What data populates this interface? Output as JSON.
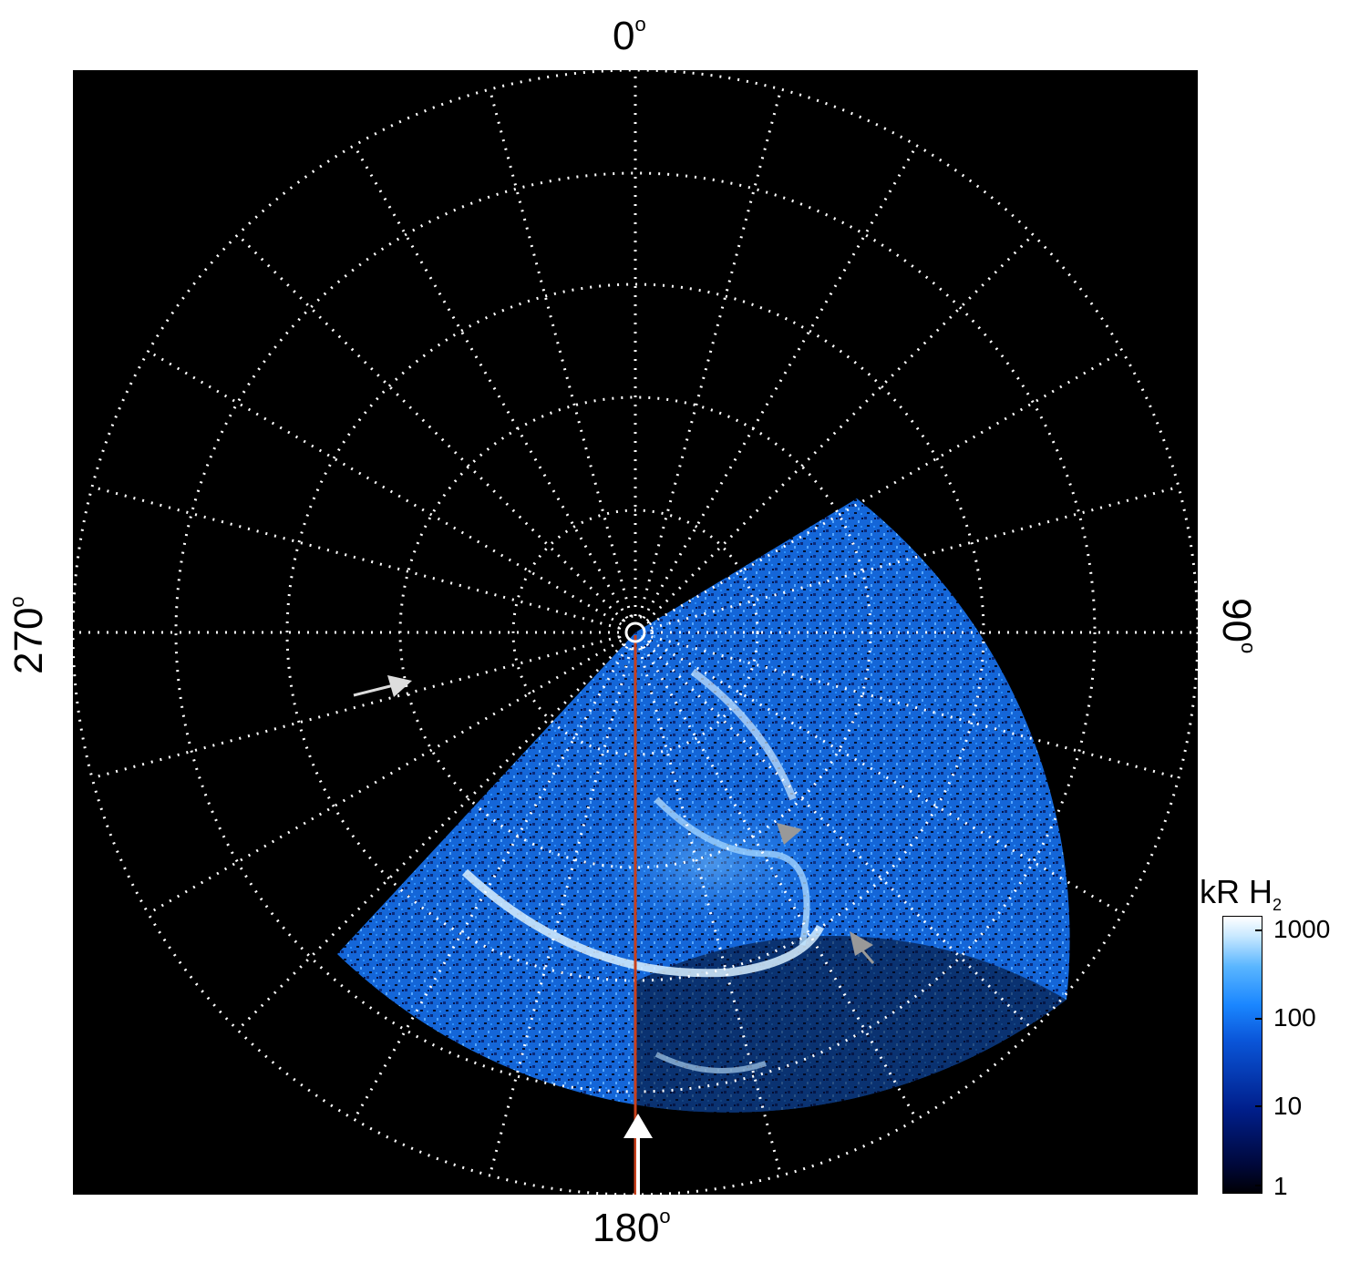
{
  "axis_labels": {
    "top": "0",
    "bottom": "180",
    "left": "270",
    "right": "90",
    "degree_symbol": "o"
  },
  "colorbar": {
    "title": "kR H",
    "title_subscript": "2",
    "ticks": [
      "1000",
      "100",
      "10",
      "1"
    ],
    "scale": "log"
  },
  "colors": {
    "background": "#000000",
    "grid": "#ffffff",
    "meridian_line": "#c8401c",
    "aurora": "#1a86ff"
  },
  "icons": [
    "white-arrow-icon",
    "gray-arrow-icon"
  ]
}
